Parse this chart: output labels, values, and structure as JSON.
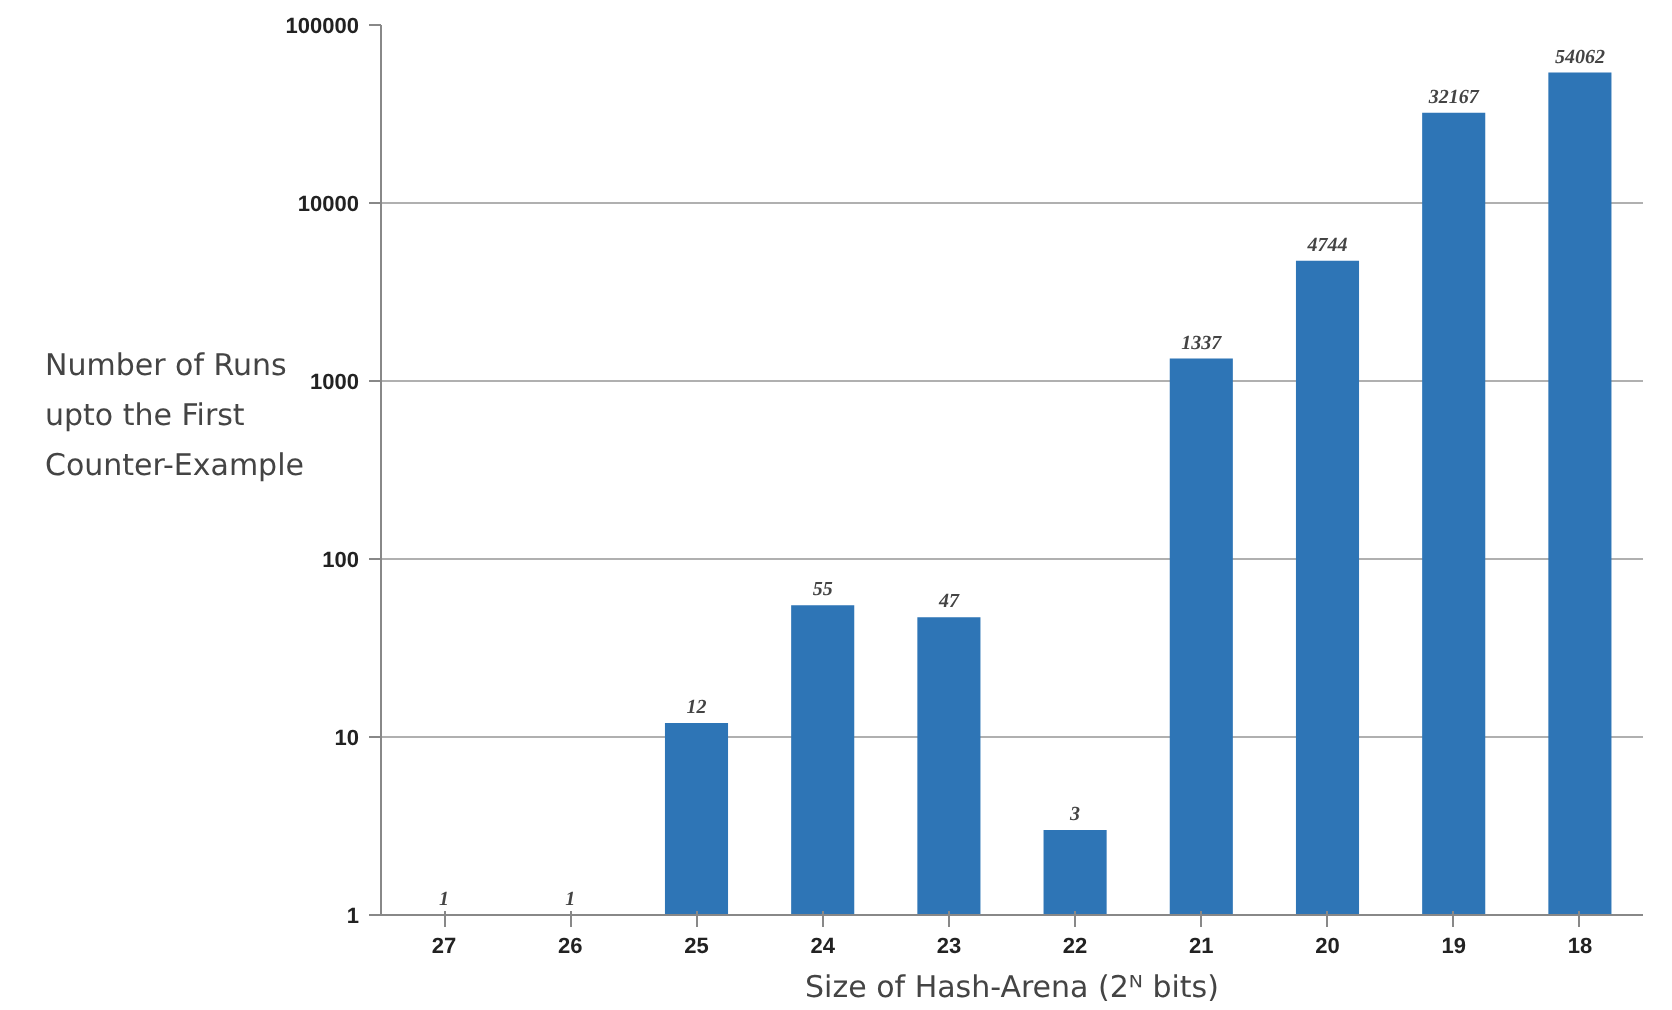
{
  "chart_data": {
    "type": "bar",
    "xlabel": "Size of Hash-Arena (2ᴺ bits)",
    "ylabel": "Number of Runs\nupto the First\nCounter-Example",
    "categories": [
      "27",
      "26",
      "25",
      "24",
      "23",
      "22",
      "21",
      "20",
      "19",
      "18"
    ],
    "values": [
      1,
      1,
      12,
      55,
      47,
      3,
      1337,
      4744,
      32167,
      54062
    ],
    "color": "#2e75b6",
    "log": true,
    "ylim": [
      1,
      100000
    ],
    "yticks": [
      1,
      10,
      100,
      1000,
      10000,
      100000
    ],
    "grid": "y",
    "data_labels": true
  }
}
